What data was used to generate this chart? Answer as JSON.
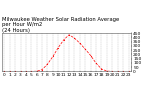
{
  "title": "Milwaukee Weather Solar Radiation Average\nper Hour W/m2\n(24 Hours)",
  "title_fontsize": 3.8,
  "x_hours": [
    0,
    1,
    2,
    3,
    4,
    5,
    6,
    7,
    8,
    9,
    10,
    11,
    12,
    13,
    14,
    15,
    16,
    17,
    18,
    19,
    20,
    21,
    22,
    23
  ],
  "y_values": [
    0,
    0,
    0,
    0,
    0,
    0,
    2,
    20,
    85,
    175,
    280,
    370,
    430,
    390,
    330,
    260,
    185,
    95,
    28,
    3,
    0,
    0,
    0,
    0
  ],
  "line_color": "#ff0000",
  "bg_color": "#ffffff",
  "plot_bg": "#ffffff",
  "grid_color": "#999999",
  "xlim": [
    -0.5,
    23.5
  ],
  "ylim": [
    0,
    450
  ],
  "yticks": [
    0,
    50,
    100,
    150,
    200,
    250,
    300,
    350,
    400,
    450
  ],
  "ytick_labels": [
    "0",
    "50",
    "100",
    "150",
    "200",
    "250",
    "300",
    "350",
    "400",
    "450"
  ],
  "ytick_fontsize": 3.2,
  "xtick_fontsize": 3.2
}
